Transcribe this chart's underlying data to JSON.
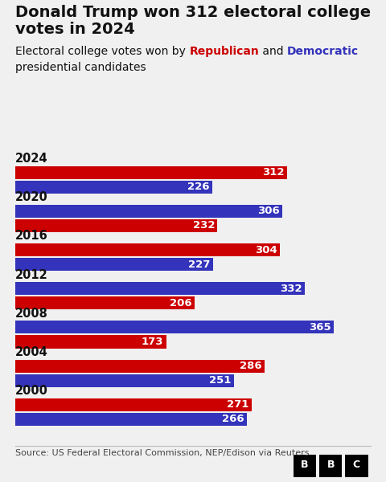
{
  "title_line1": "Donald Trump won 312 electoral college",
  "title_line2": "votes in 2024",
  "subtitle_plain": "Electoral college votes won by ",
  "subtitle_rep": "Republican",
  "subtitle_mid": " and ",
  "subtitle_dem": "Democratic",
  "subtitle_end": "presidential candidates",
  "years": [
    "2024",
    "2020",
    "2016",
    "2012",
    "2008",
    "2004",
    "2000"
  ],
  "republican_votes": [
    312,
    232,
    304,
    206,
    173,
    286,
    271
  ],
  "democratic_votes": [
    226,
    306,
    227,
    332,
    365,
    251,
    266
  ],
  "rep_color": "#cc0000",
  "dem_color": "#3333bb",
  "bar_label_color": "#ffffff",
  "background_color": "#f0f0f0",
  "title_color": "#111111",
  "subtitle_color": "#111111",
  "year_label_color": "#111111",
  "rep_text_color": "#cc0000",
  "dem_text_color": "#3333bb",
  "source_text": "Source: US Federal Electoral Commission, NEP/Edison via Reuters",
  "max_votes": 390,
  "title_fontsize": 14,
  "subtitle_fontsize": 10,
  "year_fontsize": 10.5,
  "bar_label_fontsize": 9.5,
  "source_fontsize": 8
}
